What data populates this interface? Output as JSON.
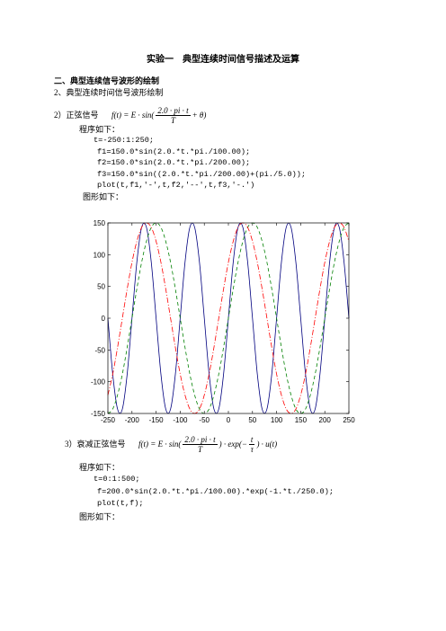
{
  "header": {
    "title": "实验一　典型连续时间信号描述及运算"
  },
  "section": {
    "heading": "二、典型连续信号波形的绘制",
    "subheading": "2、典型连续时间信号波形绘制"
  },
  "item1": {
    "label": "2）正弦信号",
    "formula": {
      "lhs": "f(t) = E · sin(",
      "num": "2.0 · pi · t",
      "den": "T",
      "tail": "+ θ)"
    },
    "program_label": "程序如下：",
    "code": [
      "t=-250:1:250;",
      "f1=150.0*sin(2.0.*t.*pi./100.00);",
      "f2=150.0*sin(2.0.*t.*pi./200.00);",
      "f3=150.0*sin((2.0.*t.*pi./200.00)+(pi./5.0));",
      "plot(t,f1,'-',t,f2,'--',t,f3,'-.')"
    ],
    "figure_label": "图形如下："
  },
  "chart_data": {
    "type": "line",
    "x": [
      -250,
      -240,
      -230,
      -220,
      -210,
      -200,
      -190,
      -180,
      -170,
      -160,
      -150,
      -140,
      -130,
      -120,
      -110,
      -100,
      -90,
      -80,
      -70,
      -60,
      -50,
      -40,
      -30,
      -20,
      -10,
      0,
      10,
      20,
      30,
      40,
      50,
      60,
      70,
      80,
      90,
      100,
      110,
      120,
      130,
      140,
      150,
      160,
      170,
      180,
      190,
      200,
      210,
      220,
      230,
      240,
      250
    ],
    "series": [
      {
        "name": "f1",
        "color": "#00007f",
        "dash": "solid",
        "values": [
          0,
          -88,
          -143,
          -143,
          -88,
          0,
          88,
          143,
          143,
          88,
          0,
          -88,
          -143,
          -143,
          -88,
          0,
          88,
          143,
          143,
          88,
          0,
          -88,
          -143,
          -143,
          -88,
          0,
          88,
          143,
          143,
          88,
          0,
          -88,
          -143,
          -143,
          -88,
          0,
          88,
          143,
          143,
          88,
          0,
          -88,
          -143,
          -143,
          -88,
          0,
          88,
          143,
          143,
          88,
          0
        ]
      },
      {
        "name": "f2",
        "color": "#008000",
        "dash": "dashed",
        "values": [
          -150,
          -143,
          -121,
          -88,
          -46,
          0,
          46,
          88,
          121,
          143,
          150,
          143,
          121,
          88,
          46,
          0,
          -46,
          -88,
          -121,
          -143,
          -150,
          -143,
          -121,
          -88,
          -46,
          0,
          46,
          88,
          121,
          143,
          150,
          143,
          121,
          88,
          46,
          0,
          -46,
          -88,
          -121,
          -143,
          -150,
          -143,
          -121,
          -88,
          -46,
          0,
          46,
          88,
          121,
          143,
          150
        ]
      },
      {
        "name": "f3",
        "color": "#ff0000",
        "dash": "dashdot",
        "values": [
          -121,
          -88,
          -46,
          0,
          46,
          88,
          121,
          143,
          150,
          143,
          121,
          88,
          46,
          0,
          -46,
          -88,
          -121,
          -143,
          -150,
          -143,
          -121,
          -88,
          -46,
          0,
          46,
          88,
          121,
          143,
          150,
          143,
          121,
          88,
          46,
          0,
          -46,
          -88,
          -121,
          -143,
          -150,
          -143,
          -121,
          -88,
          -46,
          0,
          46,
          88,
          121,
          143,
          150,
          143,
          121
        ]
      }
    ],
    "xlim": [
      -250,
      250
    ],
    "xticks": [
      -250,
      -200,
      -150,
      -100,
      -50,
      0,
      50,
      100,
      150,
      200,
      250
    ],
    "ylim": [
      -150,
      150
    ],
    "yticks": [
      -150,
      -100,
      -50,
      0,
      50,
      100,
      150
    ],
    "grid": false
  },
  "item2": {
    "label": "3）衰减正弦信号",
    "formula": {
      "lhs": "f(t) = E · sin(",
      "num": "2.0 · pi · t",
      "den": "T",
      "mid": ") · exp(−",
      "num2": "t",
      "den2": "τ",
      "tail": ") · u(t)"
    },
    "program_label": "程序如下：",
    "code": [
      "t=0:1:500;",
      "f=200.0*sin(2.0.*t.*pi./100.00).*exp(-1.*t./250.0);",
      "plot(t,f);"
    ],
    "figure_label": "图形如下："
  }
}
